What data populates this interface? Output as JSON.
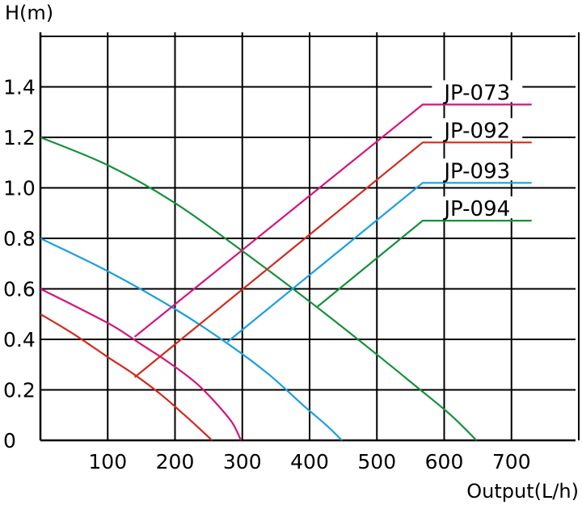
{
  "chart_data": {
    "type": "line",
    "title": "",
    "xlabel": "Output(L/h)",
    "ylabel": "H(m)",
    "xlim": [
      0,
      800
    ],
    "ylim": [
      0,
      1.6
    ],
    "x_ticks": [
      100,
      200,
      300,
      400,
      500,
      600,
      700
    ],
    "y_ticks": [
      0,
      0.2,
      0.4,
      0.6,
      0.8,
      1.0,
      1.2,
      1.4
    ],
    "y_tick_labels": [
      "0",
      "0.2",
      "0.4",
      "0.6",
      "0.8",
      "1.0",
      "1.2",
      "1.4"
    ],
    "grid": true,
    "legend": "right, labels over colored leader lines",
    "series": [
      {
        "name": "JP-073",
        "color": "#d4147c",
        "x": [
          0,
          60,
          110,
          150,
          190,
          230,
          260,
          285,
          298
        ],
        "y": [
          0.6,
          0.52,
          0.45,
          0.38,
          0.31,
          0.23,
          0.15,
          0.07,
          0
        ],
        "leader": {
          "from": [
            140,
            0.41
          ],
          "to": [
            568,
            1.33
          ],
          "end": [
            730,
            1.33
          ]
        }
      },
      {
        "name": "JP-092",
        "color": "#d22b1c",
        "x": [
          0,
          50,
          100,
          140,
          180,
          210,
          235,
          255
        ],
        "y": [
          0.5,
          0.42,
          0.33,
          0.26,
          0.18,
          0.11,
          0.05,
          0
        ],
        "leader": {
          "from": [
            140,
            0.25
          ],
          "to": [
            568,
            1.18
          ],
          "end": [
            730,
            1.18
          ]
        }
      },
      {
        "name": "JP-093",
        "color": "#1aa0e0",
        "x": [
          0,
          100,
          200,
          280,
          340,
          390,
          425,
          448
        ],
        "y": [
          0.8,
          0.67,
          0.52,
          0.38,
          0.26,
          0.14,
          0.06,
          0
        ],
        "leader": {
          "from": [
            278,
            0.39
          ],
          "to": [
            568,
            1.02
          ],
          "end": [
            730,
            1.02
          ]
        }
      },
      {
        "name": "JP-094",
        "color": "#15913a",
        "x": [
          0,
          100,
          200,
          300,
          400,
          500,
          560,
          610,
          648
        ],
        "y": [
          1.2,
          1.09,
          0.94,
          0.75,
          0.55,
          0.34,
          0.21,
          0.1,
          0
        ],
        "leader": {
          "from": [
            412,
            0.53
          ],
          "to": [
            568,
            0.87
          ],
          "end": [
            730,
            0.87
          ]
        }
      }
    ]
  }
}
